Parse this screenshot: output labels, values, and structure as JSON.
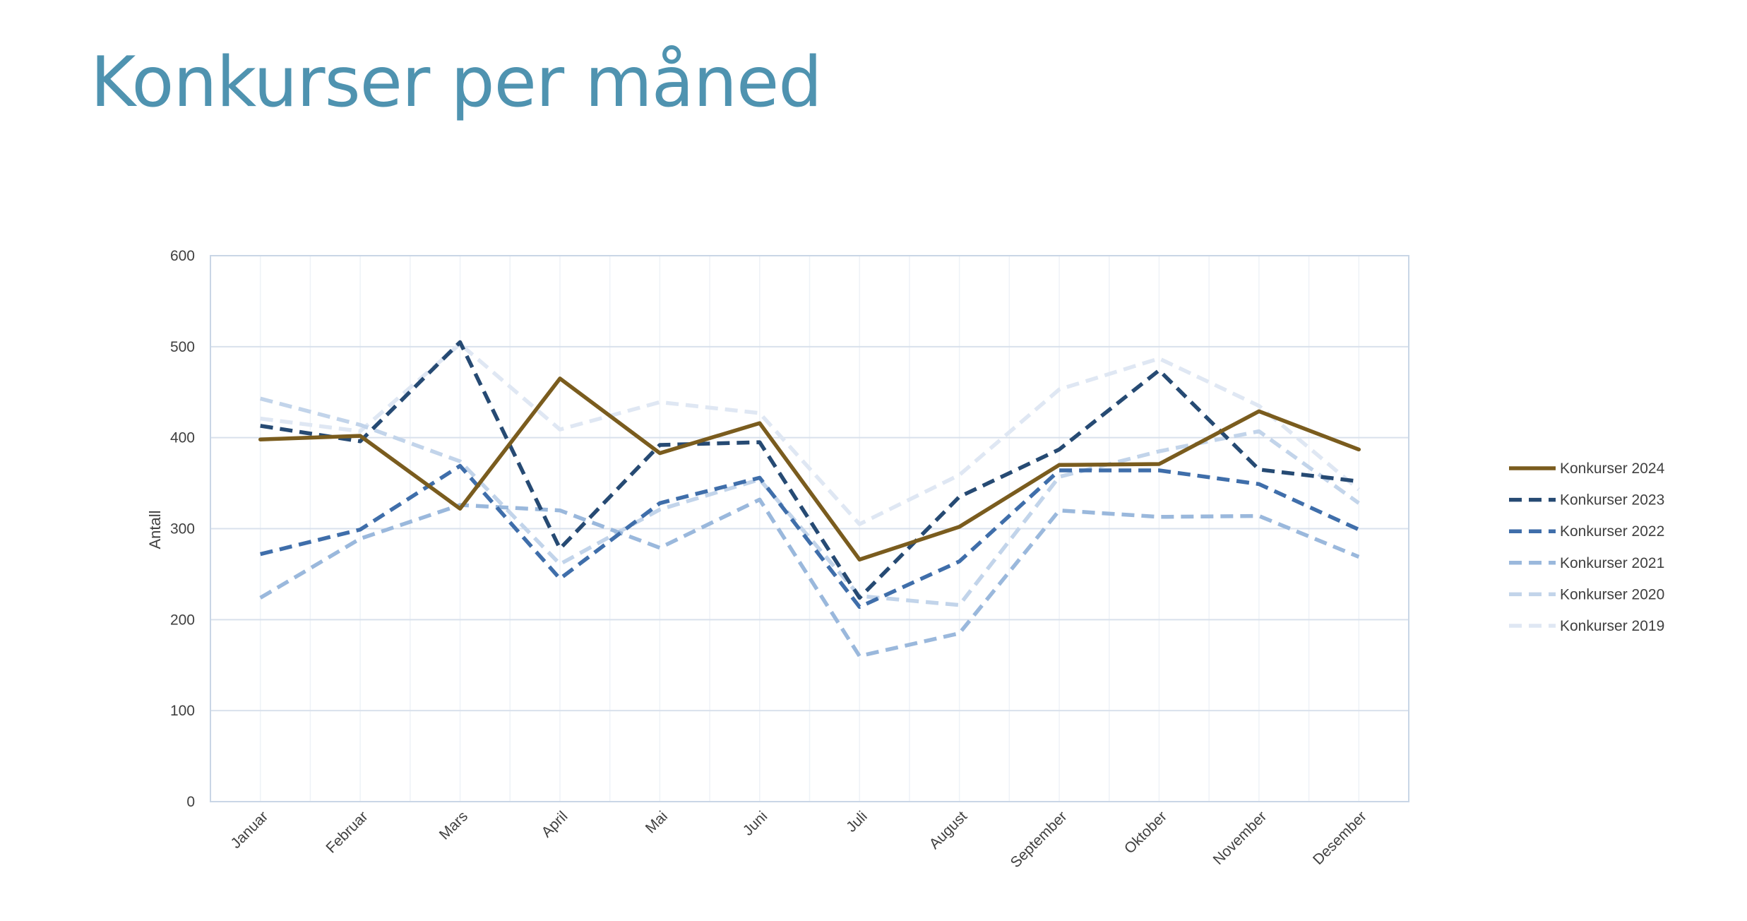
{
  "page": {
    "title": "Konkurser per måned"
  },
  "chart_data": {
    "type": "line",
    "title": "",
    "xlabel": "",
    "ylabel": "Antall",
    "ylim": [
      0,
      600
    ],
    "yticks": [
      0,
      100,
      200,
      300,
      400,
      500,
      600
    ],
    "grid": true,
    "legend_position": "right",
    "categories": [
      "Januar",
      "Februar",
      "Mars",
      "April",
      "Mai",
      "Juni",
      "Juli",
      "August",
      "September",
      "Oktober",
      "November",
      "Desember"
    ],
    "series": [
      {
        "name": "Konkurser 2024",
        "color": "#7a5c1e",
        "dashed": false,
        "values": [
          398,
          402,
          322,
          465,
          383,
          416,
          266,
          302,
          370,
          371,
          429,
          387
        ]
      },
      {
        "name": "Konkurser 2023",
        "color": "#264a73",
        "dashed": true,
        "values": [
          413,
          396,
          505,
          278,
          392,
          395,
          224,
          335,
          387,
          474,
          365,
          352
        ]
      },
      {
        "name": "Konkurser 2022",
        "color": "#3f6eaa",
        "dashed": true,
        "values": [
          272,
          299,
          369,
          245,
          328,
          356,
          214,
          264,
          364,
          364,
          349,
          299
        ]
      },
      {
        "name": "Konkurser 2021",
        "color": "#9ab8dc",
        "dashed": true,
        "values": [
          224,
          289,
          326,
          320,
          279,
          332,
          160,
          185,
          320,
          313,
          314,
          269
        ]
      },
      {
        "name": "Konkurser 2020",
        "color": "#c2d4ea",
        "dashed": true,
        "values": [
          443,
          414,
          374,
          261,
          321,
          354,
          226,
          216,
          357,
          385,
          407,
          328
        ]
      },
      {
        "name": "Konkurser 2019",
        "color": "#dfe7f3",
        "dashed": true,
        "values": [
          421,
          407,
          503,
          409,
          439,
          427,
          305,
          359,
          453,
          487,
          435,
          343
        ]
      }
    ]
  }
}
